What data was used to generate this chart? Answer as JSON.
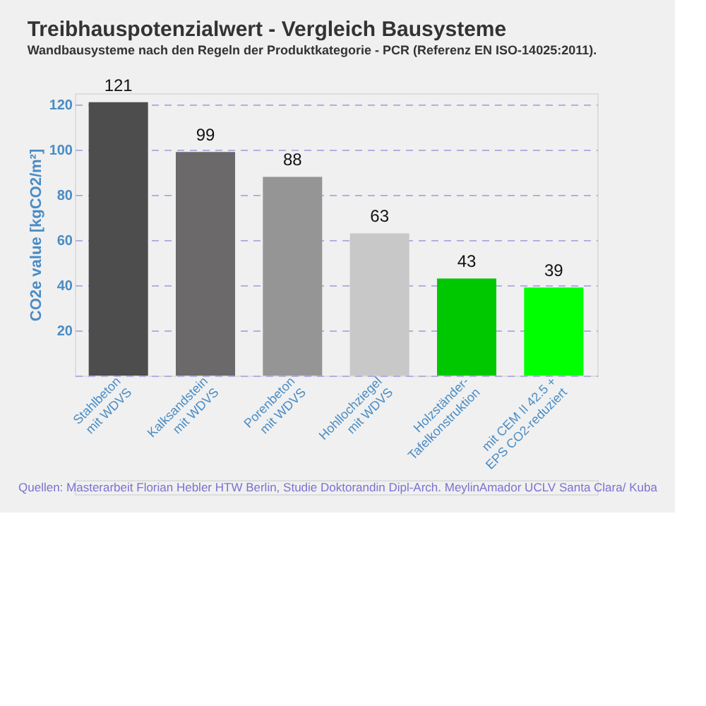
{
  "chart_data": {
    "type": "bar",
    "title": "Treibhauspotenzialwert - Vergleich Bausysteme",
    "subtitle": "Wandbausysteme nach den Regeln der Produktkategorie - PCR (Referenz EN ISO-14025:2011).",
    "ylabel": "CO2e value [kgCO2/m²]",
    "categories": [
      "Stahlbeton\nmit WDVS",
      "Kalksandstein\nmit WDVS",
      "Porenbeton\nmit WDVS",
      "Hohllochziegel\nmit WDVS",
      "Holzständer-\nTafelkonstruktion",
      "mit CEM II 42.5 +\nEPS CO2-reduziert"
    ],
    "values": [
      121,
      99,
      88,
      63,
      43,
      39
    ],
    "colors": [
      "#4d4d4d",
      "#6b6969",
      "#959595",
      "#c8c8c8",
      "#00c800",
      "#00ff00"
    ],
    "ylim": [
      0,
      125
    ],
    "yticks": [
      {
        "value": 0,
        "label": null
      },
      20,
      40,
      60,
      80,
      100,
      120
    ],
    "grid": "y",
    "data_labels": true,
    "annotations": [
      "Quellen: Masterarbeit Florian Hebler HTW Berlin, Studie Doktorandin Dipl-Arch. MeylinAmador UCLV Santa Clara/ Kuba"
    ]
  }
}
